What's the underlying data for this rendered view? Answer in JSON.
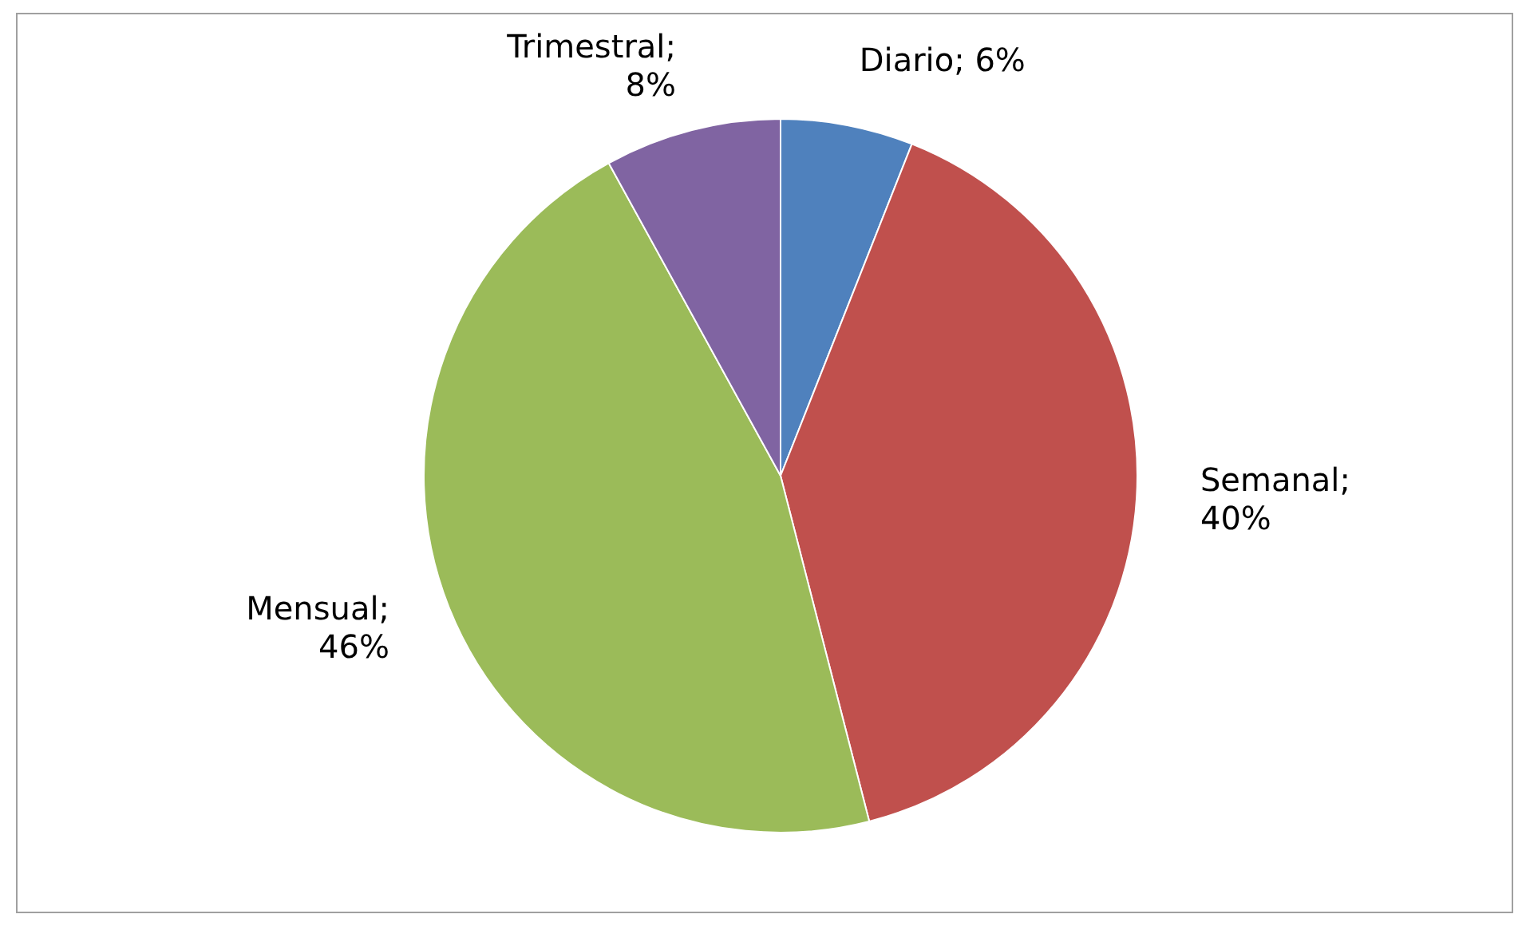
{
  "chart_data": {
    "type": "pie",
    "categories": [
      "Diario",
      "Semanal",
      "Mensual",
      "Trimestral"
    ],
    "values": [
      6,
      40,
      46,
      8
    ],
    "colors": [
      "#4f81bd",
      "#c0504d",
      "#9bbb59",
      "#8064a2"
    ],
    "value_labels": [
      "; 6%",
      "; 40%",
      "; 46%",
      "; 8%"
    ],
    "legend": false
  }
}
